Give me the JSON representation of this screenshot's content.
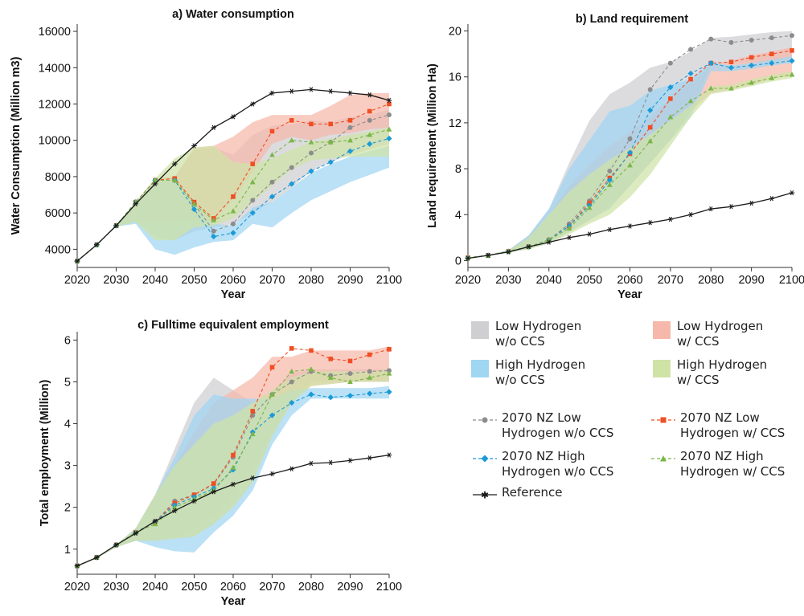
{
  "palette": {
    "low_wo": "#8c8c8c",
    "low_w": "#f04e23",
    "high_wo": "#1a9ad6",
    "high_w": "#7ab648",
    "band_low_wo": "#cfcfd2",
    "band_low_w": "#f6b8aa",
    "band_high_wo": "#9fd6f2",
    "band_high_w": "#cfe3a6",
    "reference": "#1a1a1a"
  },
  "legend": {
    "band_low_wo": "Low Hydrogen\nw/o CCS",
    "band_low_w": "Low Hydrogen\nw/ CCS",
    "band_high_wo": "High Hydrogen\nw/o CCS",
    "band_high_w": "High Hydrogen\nw/ CCS",
    "line_low_wo": "2070 NZ Low\nHydrogen w/o CCS",
    "line_low_w": "2070 NZ Low\nHydrogen w/ CCS",
    "line_high_wo": "2070 NZ High\nHydrogen w/o CCS",
    "line_high_w": "2070 NZ High\nHydrogen w/ CCS",
    "line_reference": "Reference"
  },
  "chart_data": [
    {
      "id": "water",
      "type": "line",
      "title": "a) Water consumption",
      "xlabel": "Year",
      "ylabel": "Water Consumption (Million m3)",
      "xlim": [
        2020,
        2100
      ],
      "ylim": [
        3000,
        16400
      ],
      "xticks": [
        2020,
        2030,
        2040,
        2050,
        2060,
        2070,
        2080,
        2090,
        2100
      ],
      "yticks": [
        4000,
        6000,
        8000,
        10000,
        12000,
        14000,
        16000
      ],
      "x": [
        2020,
        2025,
        2030,
        2035,
        2040,
        2045,
        2050,
        2055,
        2060,
        2065,
        2070,
        2075,
        2080,
        2085,
        2090,
        2095,
        2100
      ],
      "bands": [
        {
          "name": "Low Hydrogen w/o CCS",
          "key": "low_wo",
          "upper": [
            3350,
            4250,
            5300,
            6600,
            7900,
            8000,
            9500,
            9600,
            9200,
            10300,
            10800,
            10900,
            11100,
            11000,
            11300,
            11400,
            11700
          ],
          "lower": [
            3300,
            4200,
            5250,
            5500,
            4700,
            4500,
            5000,
            5200,
            5400,
            6000,
            6600,
            7400,
            8300,
            8800,
            9200,
            9500,
            9800
          ]
        },
        {
          "name": "Low Hydrogen w/ CCS",
          "key": "low_w",
          "upper": [
            3350,
            4250,
            5300,
            6600,
            7900,
            8000,
            9600,
            9700,
            10200,
            11000,
            11400,
            11400,
            11400,
            11900,
            12500,
            12600,
            12600
          ],
          "lower": [
            3300,
            4200,
            5250,
            5600,
            5500,
            5500,
            5600,
            5600,
            6700,
            8300,
            9800,
            10200,
            10000,
            10300,
            10400,
            10600,
            10700
          ]
        },
        {
          "name": "High Hydrogen w/o CCS",
          "key": "high_wo",
          "upper": [
            3350,
            4250,
            5300,
            6500,
            7700,
            7800,
            6500,
            5400,
            5300,
            6300,
            6600,
            7400,
            8200,
            8700,
            9100,
            9400,
            9700
          ],
          "lower": [
            3300,
            4200,
            5250,
            5400,
            4000,
            3700,
            4100,
            4400,
            4500,
            5400,
            5200,
            6000,
            6700,
            7200,
            7700,
            8100,
            8500
          ]
        },
        {
          "name": "High Hydrogen w/ CCS",
          "key": "high_w",
          "upper": [
            3350,
            4250,
            5300,
            6600,
            7900,
            9000,
            9600,
            9700,
            8800,
            8700,
            9000,
            9500,
            9900,
            10100,
            10300,
            10500,
            10700
          ],
          "lower": [
            3300,
            4200,
            5250,
            5500,
            4500,
            4500,
            5200,
            5300,
            5700,
            6600,
            7500,
            8400,
            8900,
            9000,
            9100,
            9100,
            9100
          ]
        }
      ],
      "series": [
        {
          "name": "2070 NZ Low Hydrogen w/o CCS",
          "key": "low_wo",
          "marker": "circle",
          "values": [
            3350,
            4250,
            5300,
            6600,
            7800,
            7800,
            6500,
            5000,
            5400,
            6700,
            7700,
            8500,
            9300,
            9900,
            10700,
            11100,
            11400
          ]
        },
        {
          "name": "2070 NZ Low Hydrogen w/ CCS",
          "key": "low_w",
          "marker": "square",
          "values": [
            3350,
            4250,
            5300,
            6600,
            7800,
            7900,
            6600,
            5700,
            6900,
            8700,
            10500,
            11100,
            10900,
            10900,
            11100,
            11600,
            12000
          ]
        },
        {
          "name": "2070 NZ High Hydrogen w/o CCS",
          "key": "high_wo",
          "marker": "diamond",
          "values": [
            3350,
            4250,
            5300,
            6600,
            7800,
            7800,
            6200,
            4700,
            4900,
            6000,
            6900,
            7600,
            8300,
            8800,
            9400,
            9800,
            10100
          ]
        },
        {
          "name": "2070 NZ High Hydrogen w/ CCS",
          "key": "high_w",
          "marker": "triangle",
          "values": [
            3350,
            4250,
            5300,
            6600,
            7800,
            7800,
            6500,
            5600,
            6100,
            7700,
            9200,
            10000,
            9900,
            9900,
            10000,
            10300,
            10600
          ]
        },
        {
          "name": "Reference",
          "key": "reference",
          "marker": "star",
          "values": [
            3350,
            4250,
            5300,
            6500,
            7600,
            8700,
            9700,
            10700,
            11300,
            12000,
            12600,
            12700,
            12800,
            12700,
            12600,
            12500,
            12200
          ]
        }
      ]
    },
    {
      "id": "land",
      "type": "line",
      "title": "b) Land requirement",
      "xlabel": "Year",
      "ylabel": "Land requirement (Million Ha)",
      "xlim": [
        2020,
        2100
      ],
      "ylim": [
        -0.6,
        20.6
      ],
      "xticks": [
        2020,
        2030,
        2040,
        2050,
        2060,
        2070,
        2080,
        2090,
        2100
      ],
      "yticks": [
        0,
        4,
        8,
        12,
        16,
        20
      ],
      "x": [
        2020,
        2025,
        2030,
        2035,
        2040,
        2045,
        2050,
        2055,
        2060,
        2065,
        2070,
        2075,
        2080,
        2085,
        2090,
        2095,
        2100
      ],
      "bands": [
        {
          "name": "Low Hydrogen w/o CCS",
          "key": "low_wo",
          "upper": [
            0.25,
            0.5,
            0.9,
            2.2,
            4.5,
            8.5,
            12.2,
            14.5,
            15.5,
            16.8,
            17.3,
            18.2,
            19.4,
            19.5,
            19.7,
            19.9,
            20.0
          ],
          "lower": [
            0.2,
            0.45,
            0.7,
            1.0,
            1.5,
            2.5,
            3.5,
            4.8,
            6.5,
            8.5,
            10.5,
            13.0,
            17.0,
            17.1,
            17.2,
            17.4,
            17.6
          ]
        },
        {
          "name": "Low Hydrogen w/ CCS",
          "key": "low_w",
          "upper": [
            0.25,
            0.5,
            0.9,
            2.0,
            4.0,
            6.5,
            8.3,
            10.0,
            11.2,
            12.5,
            14.2,
            15.5,
            17.0,
            17.4,
            17.9,
            18.2,
            18.6
          ],
          "lower": [
            0.2,
            0.45,
            0.7,
            1.0,
            1.5,
            2.5,
            3.5,
            4.6,
            6.5,
            8.5,
            10.5,
            13.0,
            14.6,
            14.9,
            15.3,
            15.8,
            16.1
          ]
        },
        {
          "name": "High Hydrogen w/o CCS",
          "key": "high_wo",
          "upper": [
            0.25,
            0.5,
            0.9,
            2.2,
            4.5,
            8.0,
            10.5,
            13.0,
            13.5,
            14.8,
            15.3,
            15.8,
            17.2,
            17.0,
            17.2,
            17.5,
            17.8
          ],
          "lower": [
            0.2,
            0.45,
            0.7,
            1.0,
            1.5,
            2.5,
            3.5,
            4.5,
            6.5,
            8.5,
            10.5,
            12.5,
            16.5,
            16.5,
            16.7,
            17.0,
            17.2
          ]
        },
        {
          "name": "High Hydrogen w/ CCS",
          "key": "high_w",
          "upper": [
            0.25,
            0.5,
            0.9,
            2.0,
            4.0,
            6.0,
            7.5,
            8.8,
            9.8,
            11.0,
            12.2,
            13.5,
            15.2,
            15.3,
            15.8,
            16.2,
            16.5
          ],
          "lower": [
            0.2,
            0.45,
            0.7,
            1.0,
            1.5,
            2.3,
            3.2,
            4.0,
            5.5,
            7.5,
            10.0,
            12.5,
            14.5,
            14.8,
            15.2,
            15.6,
            15.9
          ]
        }
      ],
      "series": [
        {
          "name": "2070 NZ Low Hydrogen w/o CCS",
          "key": "low_wo",
          "marker": "circle",
          "values": [
            0.25,
            0.45,
            0.8,
            1.2,
            1.8,
            3.2,
            5.2,
            7.8,
            10.6,
            14.9,
            17.2,
            18.4,
            19.3,
            19.0,
            19.2,
            19.4,
            19.6
          ]
        },
        {
          "name": "2070 NZ Low Hydrogen w/ CCS",
          "key": "low_w",
          "marker": "square",
          "values": [
            0.25,
            0.45,
            0.8,
            1.2,
            1.8,
            3.0,
            5.0,
            7.2,
            9.3,
            11.6,
            14.1,
            15.8,
            17.2,
            17.3,
            17.7,
            18.0,
            18.3
          ]
        },
        {
          "name": "2070 NZ High Hydrogen w/o CCS",
          "key": "high_wo",
          "marker": "diamond",
          "values": [
            0.25,
            0.45,
            0.8,
            1.2,
            1.8,
            3.0,
            4.8,
            7.0,
            9.4,
            13.1,
            15.1,
            16.3,
            17.2,
            16.8,
            17.0,
            17.2,
            17.4
          ]
        },
        {
          "name": "2070 NZ High Hydrogen w/ CCS",
          "key": "high_w",
          "marker": "triangle",
          "values": [
            0.25,
            0.45,
            0.8,
            1.2,
            1.8,
            2.8,
            4.6,
            6.6,
            8.3,
            10.4,
            12.5,
            13.9,
            15.0,
            15.0,
            15.5,
            15.9,
            16.2
          ]
        },
        {
          "name": "Reference",
          "key": "reference",
          "marker": "star",
          "values": [
            0.2,
            0.45,
            0.75,
            1.2,
            1.6,
            2.0,
            2.3,
            2.7,
            3.0,
            3.3,
            3.6,
            4.0,
            4.5,
            4.7,
            5.0,
            5.4,
            5.9
          ]
        }
      ]
    },
    {
      "id": "employment",
      "type": "line",
      "title": "c) Fulltime equivalent employment",
      "xlabel": "Year",
      "ylabel": "Total employment (Million)",
      "xlim": [
        2020,
        2100
      ],
      "ylim": [
        0.4,
        6.2
      ],
      "xticks": [
        2020,
        2030,
        2040,
        2050,
        2060,
        2070,
        2080,
        2090,
        2100
      ],
      "yticks": [
        1,
        2,
        3,
        4,
        5,
        6
      ],
      "x": [
        2020,
        2025,
        2030,
        2035,
        2040,
        2045,
        2050,
        2055,
        2060,
        2065,
        2070,
        2075,
        2080,
        2085,
        2090,
        2095,
        2100
      ],
      "bands": [
        {
          "name": "Low Hydrogen w/o CCS",
          "key": "low_wo",
          "upper": [
            0.6,
            0.8,
            1.1,
            1.5,
            2.3,
            3.4,
            4.5,
            5.1,
            4.8,
            4.5,
            4.8,
            5.2,
            5.3,
            5.3,
            5.3,
            5.3,
            5.3
          ],
          "lower": [
            0.58,
            0.78,
            1.05,
            1.2,
            1.2,
            1.3,
            1.5,
            1.8,
            2.3,
            2.9,
            3.8,
            4.5,
            5.0,
            5.0,
            5.0,
            5.0,
            5.0
          ]
        },
        {
          "name": "Low Hydrogen w/ CCS",
          "key": "low_w",
          "upper": [
            0.6,
            0.8,
            1.1,
            1.5,
            2.3,
            3.0,
            3.8,
            4.5,
            4.8,
            5.1,
            5.6,
            5.6,
            5.75,
            5.75,
            5.75,
            5.75,
            5.85
          ]
        },
        {
          "name": "High Hydrogen w/o CCS",
          "key": "high_wo",
          "upper": [
            0.6,
            0.8,
            1.1,
            1.5,
            2.3,
            3.2,
            4.2,
            4.7,
            4.6,
            4.6,
            4.6,
            4.8,
            4.85,
            4.85,
            4.85,
            4.85,
            4.9
          ],
          "lower": [
            0.58,
            0.78,
            1.05,
            1.2,
            1.05,
            0.95,
            0.92,
            1.4,
            1.8,
            2.4,
            3.5,
            4.2,
            4.6,
            4.6,
            4.6,
            4.6,
            4.6
          ]
        },
        {
          "name": "High Hydrogen w/ CCS",
          "key": "high_w",
          "upper": [
            0.6,
            0.8,
            1.1,
            1.5,
            2.3,
            3.0,
            3.5,
            4.0,
            4.2,
            4.5,
            4.8,
            5.1,
            5.25,
            5.25,
            5.25,
            5.25,
            5.3
          ],
          "lower": [
            0.58,
            0.78,
            1.05,
            1.2,
            1.2,
            1.25,
            1.3,
            1.6,
            2.0,
            2.6,
            3.7,
            4.5,
            4.9,
            4.95,
            5.0,
            5.0,
            5.0
          ]
        }
      ],
      "series": [
        {
          "name": "2070 NZ Low Hydrogen w/o CCS",
          "key": "low_wo",
          "marker": "circle",
          "values": [
            0.6,
            0.8,
            1.1,
            1.4,
            1.65,
            2.15,
            2.3,
            2.55,
            3.2,
            4.2,
            4.7,
            5.0,
            5.25,
            5.15,
            5.2,
            5.25,
            5.27
          ]
        },
        {
          "name": "2070 NZ Low Hydrogen w/ CCS",
          "key": "low_w",
          "marker": "square",
          "values": [
            0.6,
            0.8,
            1.1,
            1.4,
            1.65,
            2.1,
            2.3,
            2.57,
            3.25,
            4.3,
            5.35,
            5.8,
            5.75,
            5.55,
            5.5,
            5.65,
            5.78
          ]
        },
        {
          "name": "2070 NZ High Hydrogen w/o CCS",
          "key": "high_wo",
          "marker": "diamond",
          "values": [
            0.6,
            0.8,
            1.1,
            1.4,
            1.65,
            2.05,
            2.25,
            2.45,
            2.9,
            3.8,
            4.2,
            4.5,
            4.7,
            4.63,
            4.67,
            4.72,
            4.76
          ]
        },
        {
          "name": "2070 NZ High Hydrogen w/ CCS",
          "key": "high_w",
          "marker": "triangle",
          "values": [
            0.6,
            0.8,
            1.1,
            1.4,
            1.6,
            2.0,
            2.2,
            2.4,
            2.95,
            3.75,
            4.7,
            5.25,
            5.3,
            5.1,
            5.0,
            5.1,
            5.2
          ]
        },
        {
          "name": "Reference",
          "key": "reference",
          "marker": "star",
          "values": [
            0.6,
            0.8,
            1.1,
            1.38,
            1.67,
            1.92,
            2.15,
            2.37,
            2.55,
            2.7,
            2.8,
            2.92,
            3.05,
            3.07,
            3.12,
            3.18,
            3.25
          ]
        }
      ]
    }
  ]
}
